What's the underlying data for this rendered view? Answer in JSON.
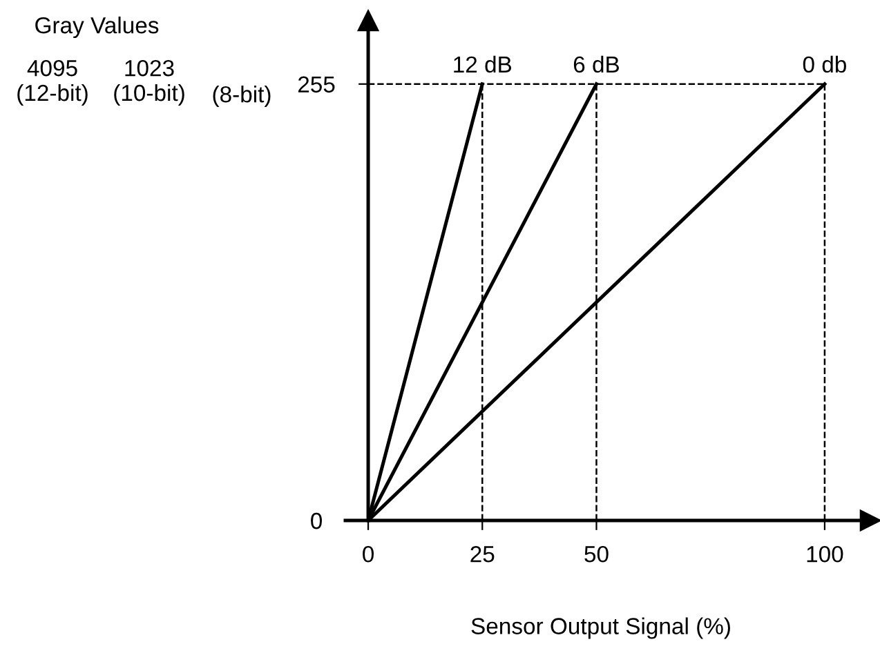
{
  "chart_data": {
    "type": "line",
    "xlabel": "Sensor Output Signal (%)",
    "xlim": [
      -5,
      110
    ],
    "ylim": [
      0,
      292
    ],
    "xticks": [
      0,
      25,
      50,
      100
    ],
    "yticks": [
      0,
      255
    ],
    "series": [
      {
        "name": "12 dB",
        "color": "#000000",
        "x": [
          0,
          25
        ],
        "values": [
          0,
          255
        ]
      },
      {
        "name": "6 dB",
        "color": "#000000",
        "x": [
          0,
          50
        ],
        "values": [
          0,
          255
        ]
      },
      {
        "name": "0 db",
        "color": "#000000",
        "x": [
          0,
          100
        ],
        "values": [
          0,
          255
        ]
      }
    ],
    "ref_lines": [
      {
        "axis": "x",
        "value": 25,
        "color": "#000000",
        "line_style": "dashed"
      },
      {
        "axis": "x",
        "value": 50,
        "color": "#000000",
        "line_style": "dashed"
      },
      {
        "axis": "x",
        "value": 100,
        "color": "#000000",
        "line_style": "dashed"
      },
      {
        "axis": "y",
        "value": 255,
        "color": "#000000",
        "line_style": "dashed"
      }
    ],
    "annotations": [
      "Gray Values",
      "4095\n(12-bit)",
      "1023\n(10-bit)",
      "(8-bit)"
    ],
    "grid": false,
    "legend": false,
    "marker": "none",
    "line_style": "solid"
  }
}
